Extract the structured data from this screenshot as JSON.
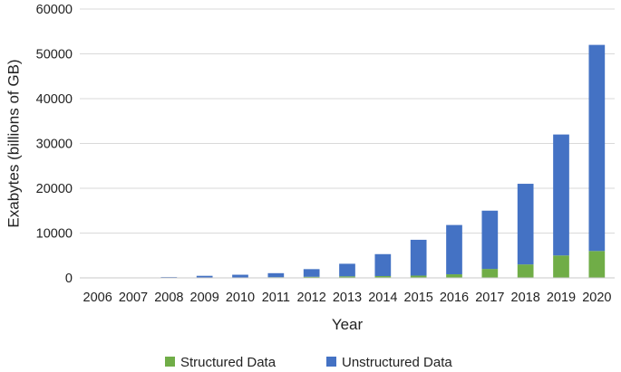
{
  "chart_data": {
    "type": "bar",
    "stacked": true,
    "categories": [
      "2006",
      "2007",
      "2008",
      "2009",
      "2010",
      "2011",
      "2012",
      "2013",
      "2014",
      "2015",
      "2016",
      "2017",
      "2018",
      "2019",
      "2020"
    ],
    "series": [
      {
        "name": "Structured Data",
        "color": "#70ad47",
        "values": [
          0,
          0,
          30,
          60,
          100,
          150,
          250,
          350,
          400,
          500,
          800,
          2000,
          3000,
          5000,
          6000
        ]
      },
      {
        "name": "Unstructured Data",
        "color": "#4472c4",
        "values": [
          10,
          20,
          150,
          400,
          600,
          900,
          1700,
          2800,
          4900,
          8000,
          11000,
          13000,
          18000,
          27000,
          46000
        ]
      }
    ],
    "xlabel": "Year",
    "ylabel": "Exabytes (billions of GB)",
    "ylim": [
      0,
      60000
    ],
    "yticks": [
      "0",
      "10000",
      "20000",
      "30000",
      "40000",
      "50000",
      "60000"
    ],
    "grid": true,
    "legend": "bottom"
  }
}
